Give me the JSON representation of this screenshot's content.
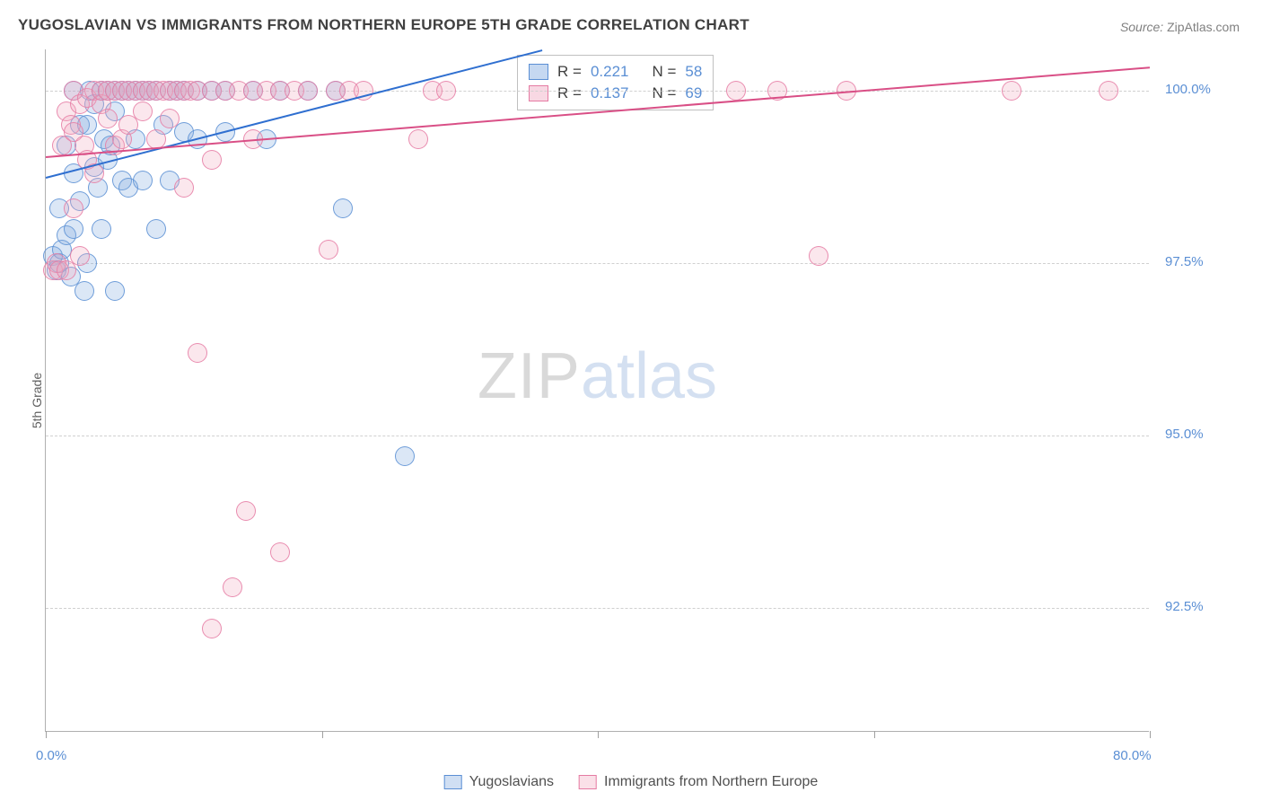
{
  "title": "YUGOSLAVIAN VS IMMIGRANTS FROM NORTHERN EUROPE 5TH GRADE CORRELATION CHART",
  "source_label": "Source:",
  "source_value": "ZipAtlas.com",
  "ylabel": "5th Grade",
  "watermark_a": "ZIP",
  "watermark_b": "atlas",
  "chart": {
    "type": "scatter",
    "background_color": "#ffffff",
    "grid_color": "#d0d0d0",
    "xlim": [
      0,
      80
    ],
    "ylim": [
      90.7,
      100.6
    ],
    "xticks": [
      0,
      20,
      40,
      60,
      80
    ],
    "xtick_labels": [
      "0.0%",
      "",
      "",
      "",
      "80.0%"
    ],
    "yticks": [
      92.5,
      95.0,
      97.5,
      100.0
    ],
    "ytick_labels": [
      "92.5%",
      "95.0%",
      "97.5%",
      "100.0%"
    ],
    "marker_radius": 11,
    "marker_fill_opacity": 0.28,
    "marker_stroke_opacity": 0.85,
    "marker_stroke_width": 1.5,
    "series": [
      {
        "name": "Yugoslavians",
        "color_fill": "#7fa8e0",
        "color_stroke": "#5b8fd4",
        "R": "0.221",
        "N": "58",
        "trend": {
          "x1": 0,
          "y1": 98.75,
          "x2": 36,
          "y2": 100.6,
          "color": "#2f6fd0",
          "width": 2
        },
        "points": [
          [
            0.5,
            97.6
          ],
          [
            0.8,
            97.4
          ],
          [
            1.0,
            97.5
          ],
          [
            1.0,
            98.3
          ],
          [
            1.2,
            97.7
          ],
          [
            1.5,
            97.9
          ],
          [
            1.5,
            99.2
          ],
          [
            1.8,
            97.3
          ],
          [
            2.0,
            98.0
          ],
          [
            2.0,
            98.8
          ],
          [
            2.0,
            100.0
          ],
          [
            2.5,
            98.4
          ],
          [
            2.5,
            99.5
          ],
          [
            2.8,
            97.1
          ],
          [
            3.0,
            99.5
          ],
          [
            3.0,
            97.5
          ],
          [
            3.2,
            100.0
          ],
          [
            3.5,
            98.9
          ],
          [
            3.5,
            99.8
          ],
          [
            3.8,
            98.6
          ],
          [
            4.0,
            100.0
          ],
          [
            4.0,
            98.0
          ],
          [
            4.2,
            99.3
          ],
          [
            4.5,
            99.0
          ],
          [
            4.5,
            100.0
          ],
          [
            4.7,
            99.2
          ],
          [
            5.0,
            99.7
          ],
          [
            5.0,
            100.0
          ],
          [
            5.0,
            97.1
          ],
          [
            5.5,
            98.7
          ],
          [
            5.5,
            100.0
          ],
          [
            6.0,
            98.6
          ],
          [
            6.0,
            100.0
          ],
          [
            6.5,
            99.3
          ],
          [
            6.5,
            100.0
          ],
          [
            7.0,
            98.7
          ],
          [
            7.0,
            100.0
          ],
          [
            7.5,
            100.0
          ],
          [
            8.0,
            98.0
          ],
          [
            8.0,
            100.0
          ],
          [
            8.5,
            99.5
          ],
          [
            9.0,
            98.7
          ],
          [
            9.0,
            100.0
          ],
          [
            9.5,
            100.0
          ],
          [
            10.0,
            99.4
          ],
          [
            10.0,
            100.0
          ],
          [
            11.0,
            99.3
          ],
          [
            11.0,
            100.0
          ],
          [
            12.0,
            100.0
          ],
          [
            13.0,
            99.4
          ],
          [
            13.0,
            100.0
          ],
          [
            15.0,
            100.0
          ],
          [
            16.0,
            99.3
          ],
          [
            17.0,
            100.0
          ],
          [
            19.0,
            100.0
          ],
          [
            21.0,
            100.0
          ],
          [
            21.5,
            98.3
          ],
          [
            26.0,
            94.7
          ]
        ]
      },
      {
        "name": "Immigrants from Northern Europe",
        "color_fill": "#f0a9c0",
        "color_stroke": "#e57ba3",
        "R": "0.137",
        "N": "69",
        "trend": {
          "x1": 0,
          "y1": 99.05,
          "x2": 80,
          "y2": 100.35,
          "color": "#d94f86",
          "width": 2
        },
        "points": [
          [
            0.5,
            97.4
          ],
          [
            0.8,
            97.5
          ],
          [
            1.0,
            97.4
          ],
          [
            1.2,
            99.2
          ],
          [
            1.5,
            99.7
          ],
          [
            1.5,
            97.4
          ],
          [
            1.8,
            99.5
          ],
          [
            2.0,
            98.3
          ],
          [
            2.0,
            99.4
          ],
          [
            2.0,
            100.0
          ],
          [
            2.5,
            99.8
          ],
          [
            2.5,
            97.6
          ],
          [
            2.8,
            99.2
          ],
          [
            3.0,
            99.9
          ],
          [
            3.0,
            99.0
          ],
          [
            3.5,
            98.8
          ],
          [
            3.5,
            100.0
          ],
          [
            4.0,
            99.8
          ],
          [
            4.0,
            100.0
          ],
          [
            4.5,
            99.6
          ],
          [
            4.5,
            100.0
          ],
          [
            5.0,
            99.2
          ],
          [
            5.0,
            100.0
          ],
          [
            5.5,
            99.3
          ],
          [
            5.5,
            100.0
          ],
          [
            6.0,
            99.5
          ],
          [
            6.0,
            100.0
          ],
          [
            6.5,
            100.0
          ],
          [
            7.0,
            99.7
          ],
          [
            7.0,
            100.0
          ],
          [
            7.5,
            100.0
          ],
          [
            8.0,
            99.3
          ],
          [
            8.0,
            100.0
          ],
          [
            8.5,
            100.0
          ],
          [
            9.0,
            99.6
          ],
          [
            9.0,
            100.0
          ],
          [
            9.5,
            100.0
          ],
          [
            10.0,
            98.6
          ],
          [
            10.0,
            100.0
          ],
          [
            10.5,
            100.0
          ],
          [
            11.0,
            96.2
          ],
          [
            11.0,
            100.0
          ],
          [
            12.0,
            92.2
          ],
          [
            12.0,
            99.0
          ],
          [
            12.0,
            100.0
          ],
          [
            13.0,
            100.0
          ],
          [
            13.5,
            92.8
          ],
          [
            14.0,
            100.0
          ],
          [
            14.5,
            93.9
          ],
          [
            15.0,
            99.3
          ],
          [
            15.0,
            100.0
          ],
          [
            16.0,
            100.0
          ],
          [
            17.0,
            93.3
          ],
          [
            17.0,
            100.0
          ],
          [
            18.0,
            100.0
          ],
          [
            19.0,
            100.0
          ],
          [
            20.5,
            97.7
          ],
          [
            21.0,
            100.0
          ],
          [
            22.0,
            100.0
          ],
          [
            23.0,
            100.0
          ],
          [
            27.0,
            99.3
          ],
          [
            28.0,
            100.0
          ],
          [
            29.0,
            100.0
          ],
          [
            50.0,
            100.0
          ],
          [
            53.0,
            100.0
          ],
          [
            56.0,
            97.6
          ],
          [
            58.0,
            100.0
          ],
          [
            70.0,
            100.0
          ],
          [
            77.0,
            100.0
          ]
        ]
      }
    ],
    "stats_box": {
      "R_label": "R =",
      "N_label": "N ="
    },
    "legend": [
      {
        "label": "Yugoslavians",
        "fill": "#a9c5ea",
        "stroke": "#5b8fd4"
      },
      {
        "label": "Immigrants from Northern Europe",
        "fill": "#f5c6d6",
        "stroke": "#e57ba3"
      }
    ]
  }
}
